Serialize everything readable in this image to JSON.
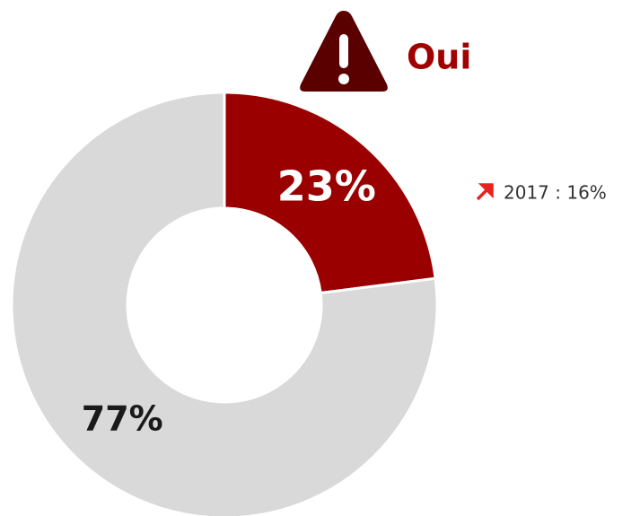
{
  "chart_data": {
    "type": "donut",
    "categories": [
      "Oui",
      null
    ],
    "values": [
      23,
      77
    ],
    "value_labels": [
      "23%",
      "77%"
    ],
    "colors": [
      "#9b0000",
      "#d9d9d9"
    ],
    "label_colors": [
      "#ffffff",
      "#1a1a1a"
    ],
    "annotation": "2017 : 16%"
  }
}
